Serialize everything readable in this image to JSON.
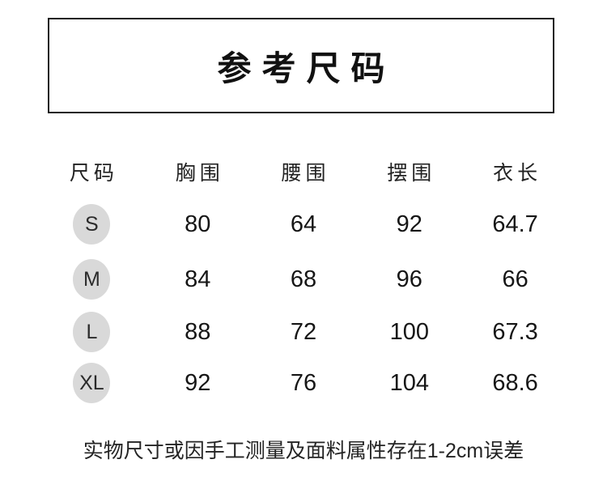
{
  "chart_data": {
    "type": "table",
    "title": "参考尺码",
    "columns": [
      "尺码",
      "胸围",
      "腰围",
      "摆围",
      "衣长"
    ],
    "rows": [
      [
        "S",
        "80",
        "64",
        "92",
        "64.7"
      ],
      [
        "M",
        "84",
        "68",
        "96",
        "66"
      ],
      [
        "L",
        "88",
        "72",
        "100",
        "67.3"
      ],
      [
        "XL",
        "92",
        "76",
        "104",
        "68.6"
      ]
    ],
    "footnote": "实物尺寸或因手工测量及面料属性存在1-2cm误差",
    "unit": "cm"
  },
  "colors": {
    "background": "#ffffff",
    "box_border": "#1f1f1f",
    "badge_background": "#d9d9d9",
    "text": "#1a1a1a"
  }
}
